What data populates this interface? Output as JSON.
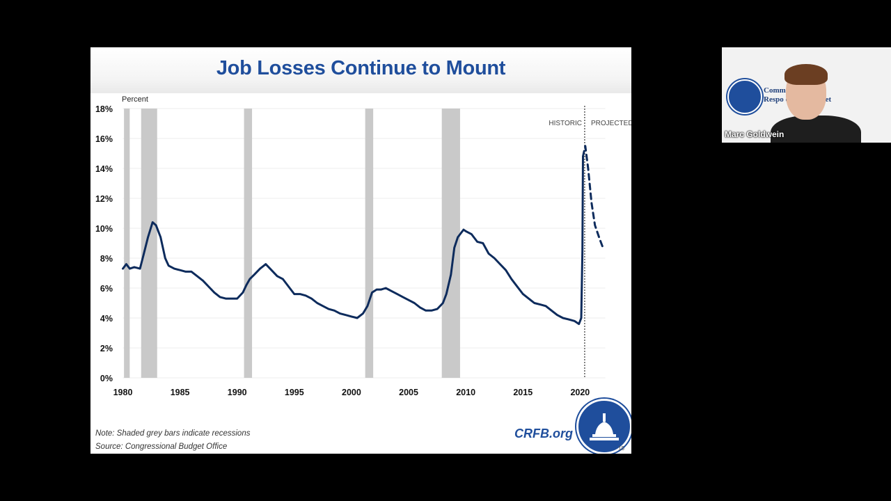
{
  "slide": {
    "title": "Job Losses Continue to Mount",
    "note": "Note: Shaded grey bars indicate recessions",
    "source": "Source: Congressional Budget Office",
    "link": "CRFB.org",
    "page_number": "15"
  },
  "webcam": {
    "participant_name": "Marc Goldwein",
    "background_text_line1": "Comm          a",
    "background_text_line2": "Respo          ederal Budget"
  },
  "colors": {
    "line": "#0d2b5c",
    "recession": "#c9c9c9",
    "title": "#1f4e9c",
    "background": "#000000"
  },
  "chart_data": {
    "type": "line",
    "title": "Job Losses Continue to Mount",
    "ylabel": "Percent",
    "xlabel": "",
    "xlim": [
      1980,
      2022.2
    ],
    "ylim": [
      0,
      18
    ],
    "x_ticks": [
      1980,
      1985,
      1990,
      1995,
      2000,
      2005,
      2010,
      2015,
      2020
    ],
    "x_tick_labels": [
      "1980",
      "1985",
      "1990",
      "1995",
      "2000",
      "2005",
      "2010",
      "2015",
      "2020"
    ],
    "y_ticks": [
      0,
      2,
      4,
      6,
      8,
      10,
      12,
      14,
      16,
      18
    ],
    "y_tick_labels": [
      "0%",
      "2%",
      "4%",
      "6%",
      "8%",
      "10%",
      "12%",
      "14%",
      "16%",
      "18%"
    ],
    "annotations": [
      "HISTORIC",
      "PROJECTED"
    ],
    "divider_x": 2020.4,
    "recessions": [
      [
        1980.1,
        1980.6
      ],
      [
        1981.6,
        1983.0
      ],
      [
        1990.6,
        1991.3
      ],
      [
        2001.2,
        2001.9
      ],
      [
        2007.9,
        2009.5
      ]
    ],
    "series": [
      {
        "style": "solid",
        "x": [
          1980.0,
          1980.3,
          1980.6,
          1981.0,
          1981.5,
          1981.8,
          1982.2,
          1982.6,
          1982.9,
          1983.3,
          1983.7,
          1984.0,
          1984.5,
          1985.0,
          1985.5,
          1986.0,
          1986.5,
          1987.0,
          1987.5,
          1988.0,
          1988.5,
          1989.0,
          1989.5,
          1990.0,
          1990.5,
          1990.8,
          1991.1,
          1991.5,
          1992.0,
          1992.5,
          1993.0,
          1993.5,
          1994.0,
          1994.5,
          1995.0,
          1995.5,
          1996.0,
          1996.5,
          1997.0,
          1997.5,
          1998.0,
          1998.5,
          1999.0,
          1999.5,
          2000.0,
          2000.5,
          2001.0,
          2001.4,
          2001.8,
          2002.2,
          2002.6,
          2003.0,
          2003.5,
          2004.0,
          2004.5,
          2005.0,
          2005.5,
          2006.0,
          2006.5,
          2007.0,
          2007.5,
          2008.0,
          2008.3,
          2008.7,
          2009.0,
          2009.3,
          2009.8,
          2010.0,
          2010.5,
          2011.0,
          2011.5,
          2012.0,
          2012.5,
          2013.0,
          2013.5,
          2014.0,
          2014.5,
          2015.0,
          2015.5,
          2016.0,
          2016.5,
          2017.0,
          2017.5,
          2018.0,
          2018.5,
          2019.0,
          2019.5,
          2019.9,
          2020.1,
          2020.2,
          2020.25
        ],
        "y": [
          7.3,
          7.6,
          7.3,
          7.4,
          7.3,
          8.2,
          9.4,
          10.4,
          10.2,
          9.4,
          8.0,
          7.5,
          7.3,
          7.2,
          7.1,
          7.1,
          6.8,
          6.5,
          6.1,
          5.7,
          5.4,
          5.3,
          5.3,
          5.3,
          5.7,
          6.2,
          6.6,
          6.9,
          7.3,
          7.6,
          7.2,
          6.8,
          6.6,
          6.1,
          5.6,
          5.6,
          5.5,
          5.3,
          5.0,
          4.8,
          4.6,
          4.5,
          4.3,
          4.2,
          4.1,
          4.0,
          4.3,
          4.8,
          5.7,
          5.9,
          5.9,
          6.0,
          5.8,
          5.6,
          5.4,
          5.2,
          5.0,
          4.7,
          4.5,
          4.5,
          4.6,
          5.0,
          5.6,
          6.9,
          8.7,
          9.4,
          9.9,
          9.8,
          9.6,
          9.1,
          9.0,
          8.3,
          8.0,
          7.6,
          7.2,
          6.6,
          6.1,
          5.6,
          5.3,
          5.0,
          4.9,
          4.8,
          4.5,
          4.2,
          4.0,
          3.9,
          3.8,
          3.6,
          4.0,
          8.5,
          14.8
        ]
      },
      {
        "style": "dashed",
        "x": [
          2020.25,
          2020.45,
          2020.7,
          2021.0,
          2021.3,
          2021.7,
          2022.0
        ],
        "y": [
          14.8,
          15.5,
          14.0,
          11.7,
          10.2,
          9.3,
          8.7
        ]
      }
    ]
  }
}
